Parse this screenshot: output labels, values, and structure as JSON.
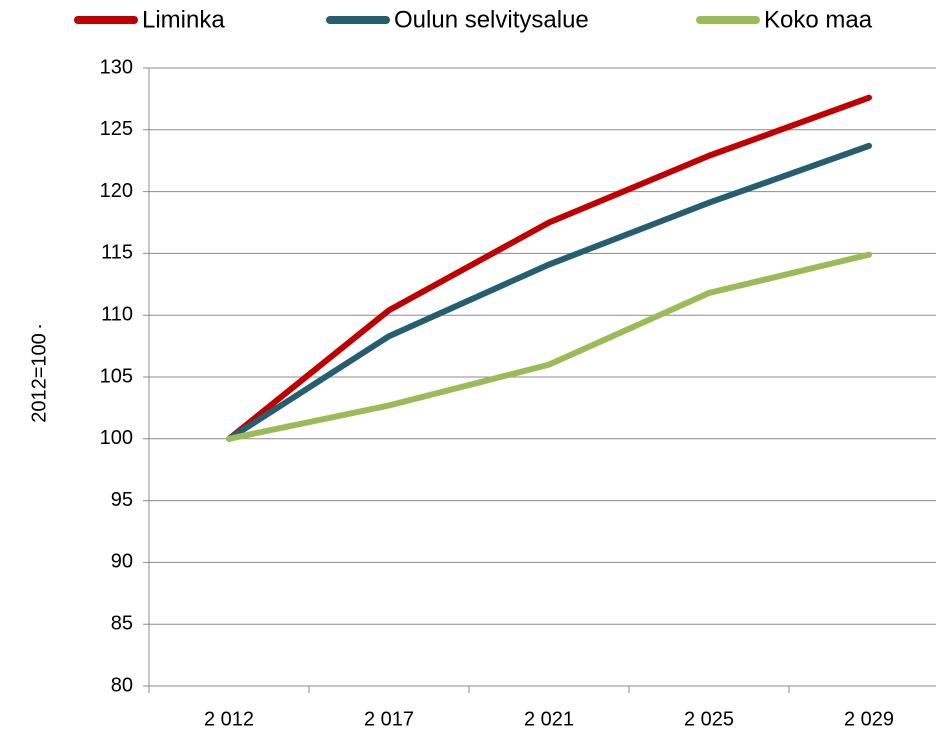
{
  "chart_data": {
    "type": "line",
    "y_label": "2012=100",
    "annotation": ".",
    "categories": [
      "2 012",
      "2 017",
      "2 021",
      "2 025",
      "2 029"
    ],
    "series": [
      {
        "name": "Liminka",
        "color": "#c00000",
        "values": [
          100,
          110.4,
          117.5,
          122.9,
          127.6
        ]
      },
      {
        "name": "Oulun selvitysalue",
        "color": "#255e6e",
        "values": [
          100,
          108.3,
          114.1,
          119.1,
          123.7
        ]
      },
      {
        "name": "Koko maa",
        "color": "#9bbb59",
        "values": [
          100,
          102.7,
          106.0,
          111.8,
          114.9
        ]
      }
    ],
    "ylim": [
      80,
      130
    ],
    "yticks": [
      80,
      85,
      90,
      95,
      100,
      105,
      110,
      115,
      120,
      125,
      130
    ],
    "grid": true,
    "legend": "top"
  }
}
